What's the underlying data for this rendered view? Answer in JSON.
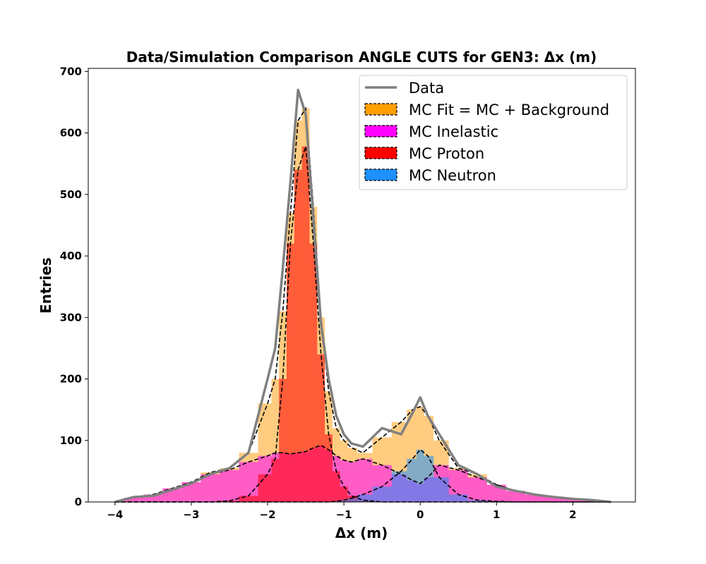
{
  "chart_data": {
    "type": "area",
    "title": "Data/Simulation Comparison ANGLE CUTS for GEN3: Δx (m)",
    "xlabel": "Δx (m)",
    "ylabel": "Entries",
    "xlim": [
      -4.35,
      2.82
    ],
    "ylim": [
      0,
      705
    ],
    "xticks": [
      -4,
      -3,
      -2,
      -1,
      0,
      1,
      2
    ],
    "xtick_labels": [
      "−4",
      "−3",
      "−2",
      "−1",
      "0",
      "1",
      "2"
    ],
    "yticks": [
      0,
      100,
      200,
      300,
      400,
      500,
      600,
      700
    ],
    "ytick_labels": [
      "0",
      "100",
      "200",
      "300",
      "400",
      "500",
      "600",
      "700"
    ],
    "legend": {
      "placement": "top-right"
    },
    "x": [
      -4.0,
      -3.75,
      -3.5,
      -3.25,
      -3.0,
      -2.75,
      -2.5,
      -2.25,
      -2.0,
      -1.9,
      -1.8,
      -1.7,
      -1.6,
      -1.5,
      -1.4,
      -1.3,
      -1.2,
      -1.1,
      -1.0,
      -0.9,
      -0.75,
      -0.5,
      -0.25,
      -0.1,
      0.0,
      0.1,
      0.25,
      0.5,
      0.75,
      1.0,
      1.25,
      1.5,
      1.75,
      2.0,
      2.25,
      2.5
    ],
    "series": [
      {
        "name": "Data",
        "kind": "line",
        "color": "#808080",
        "values": [
          0,
          8,
          10,
          20,
          30,
          45,
          55,
          80,
          200,
          250,
          380,
          520,
          670,
          630,
          460,
          290,
          200,
          140,
          110,
          95,
          90,
          120,
          110,
          145,
          170,
          140,
          110,
          60,
          45,
          25,
          18,
          12,
          8,
          5,
          3,
          0
        ]
      },
      {
        "name": "MC Fit = MC + Background",
        "kind": "area",
        "color": "#ff9f00",
        "values": [
          0,
          7,
          12,
          22,
          32,
          48,
          55,
          80,
          160,
          200,
          310,
          470,
          620,
          640,
          480,
          300,
          180,
          120,
          100,
          88,
          80,
          105,
          130,
          150,
          155,
          140,
          100,
          55,
          45,
          28,
          18,
          12,
          8,
          5,
          3,
          0
        ]
      },
      {
        "name": "MC Inelastic",
        "kind": "area",
        "color": "#ff00ff",
        "values": [
          0,
          7,
          12,
          22,
          32,
          45,
          52,
          65,
          75,
          80,
          80,
          78,
          80,
          82,
          88,
          92,
          85,
          75,
          68,
          65,
          70,
          60,
          45,
          35,
          30,
          40,
          60,
          52,
          40,
          28,
          18,
          12,
          8,
          5,
          3,
          0
        ]
      },
      {
        "name": "MC Proton",
        "kind": "area",
        "color": "#ff0000",
        "values": [
          0,
          0,
          0,
          0,
          0,
          0,
          2,
          10,
          45,
          70,
          200,
          420,
          540,
          578,
          420,
          240,
          110,
          50,
          25,
          10,
          3,
          0,
          0,
          0,
          0,
          0,
          0,
          0,
          0,
          0,
          0,
          0,
          0,
          0,
          0,
          0
        ]
      },
      {
        "name": "MC Neutron",
        "kind": "area",
        "color": "#1e90ff",
        "values": [
          0,
          0,
          0,
          0,
          0,
          0,
          0,
          0,
          0,
          0,
          0,
          0,
          0,
          0,
          0,
          0,
          0,
          1,
          3,
          6,
          12,
          25,
          50,
          70,
          85,
          75,
          40,
          12,
          3,
          1,
          0,
          0,
          0,
          0,
          0,
          0
        ]
      }
    ]
  }
}
